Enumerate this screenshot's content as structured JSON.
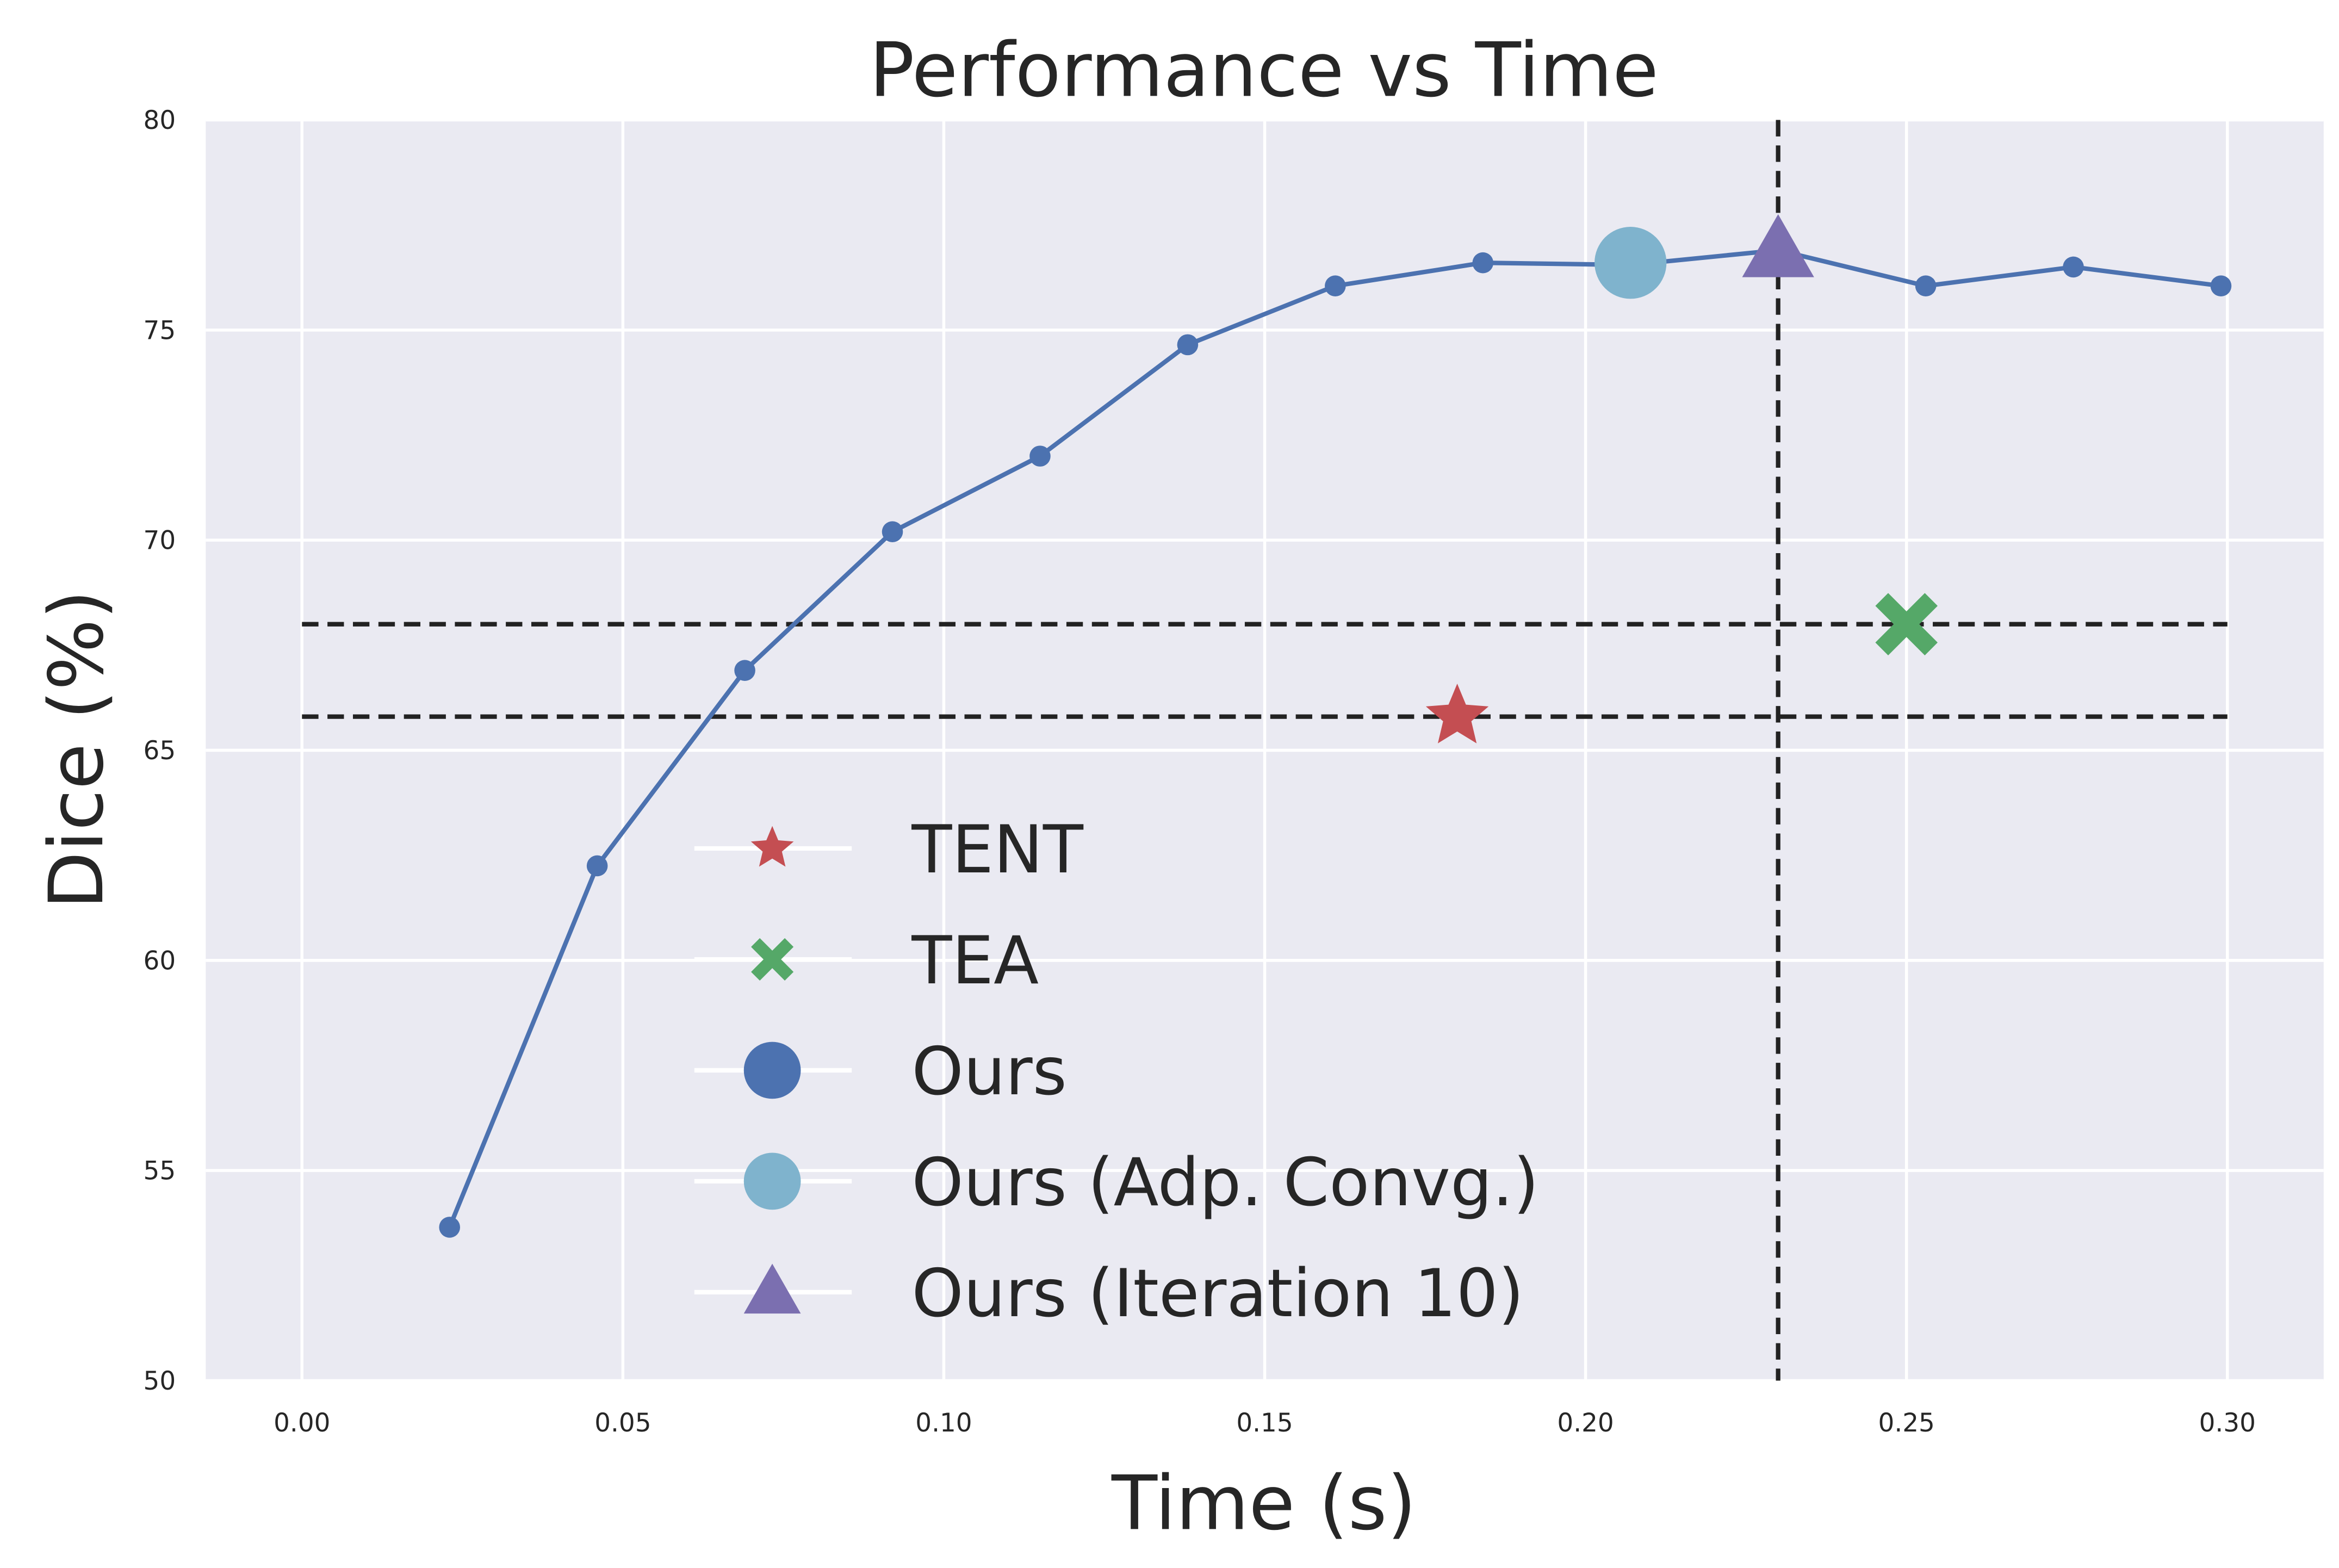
{
  "chart_data": {
    "type": "line",
    "title": "Performance vs Time",
    "xlabel": "Time (s)",
    "ylabel": "Dice (%)",
    "xlim": [
      -0.015,
      0.315
    ],
    "ylim": [
      50,
      80
    ],
    "xticks": [
      0.0,
      0.05,
      0.1,
      0.15,
      0.2,
      0.25,
      0.3
    ],
    "xtick_labels": [
      "0.00",
      "0.05",
      "0.10",
      "0.15",
      "0.20",
      "0.25",
      "0.30"
    ],
    "yticks": [
      50,
      55,
      60,
      65,
      70,
      75,
      80
    ],
    "ytick_labels": [
      "50",
      "55",
      "60",
      "65",
      "70",
      "75",
      "80"
    ],
    "grid": true,
    "background": "#eaeaf2",
    "legend_position": "lower-center",
    "series": [
      {
        "name": "Ours",
        "color": "#4c72b0",
        "marker": "circle",
        "x": [
          0.023,
          0.046,
          0.069,
          0.092,
          0.115,
          0.138,
          0.161,
          0.184,
          0.207,
          0.23,
          0.253,
          0.276,
          0.299
        ],
        "y": [
          53.65,
          62.25,
          66.9,
          70.2,
          72.0,
          74.65,
          76.05,
          76.6,
          76.55,
          76.9,
          76.05,
          76.5,
          76.05
        ]
      }
    ],
    "markers": [
      {
        "name": "TENT",
        "color": "#c44e52",
        "marker": "star",
        "x": 0.18,
        "y": 65.8
      },
      {
        "name": "TEA",
        "color": "#55a868",
        "marker": "x",
        "x": 0.25,
        "y": 68.0
      },
      {
        "name": "Ours (Adp. Convg.)",
        "color": "#7fb3cd",
        "marker": "circle",
        "x": 0.207,
        "y": 76.6
      },
      {
        "name": "Ours (Iteration 10)",
        "color": "#7b6fb0",
        "marker": "triangle",
        "x": 0.23,
        "y": 76.9
      }
    ],
    "reference_lines": [
      {
        "orientation": "horizontal",
        "value": 68.0,
        "from": 0.0,
        "to": 0.3,
        "style": "dashed",
        "color": "#222222"
      },
      {
        "orientation": "horizontal",
        "value": 65.8,
        "from": 0.0,
        "to": 0.3,
        "style": "dashed",
        "color": "#222222"
      },
      {
        "orientation": "vertical",
        "value": 0.23,
        "style": "dashed",
        "color": "#222222"
      }
    ],
    "legend": [
      "TENT",
      "TEA",
      "Ours",
      "Ours (Adp. Convg.)",
      "Ours (Iteration 10)"
    ]
  }
}
